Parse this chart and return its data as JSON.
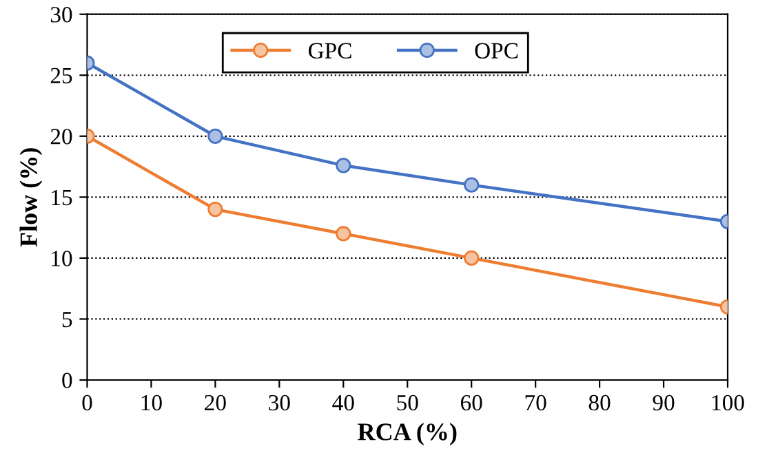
{
  "chart_data": {
    "type": "line",
    "xlabel": "RCA (%)",
    "ylabel": "Flow (%)",
    "x": [
      0,
      20,
      40,
      60,
      100
    ],
    "series": [
      {
        "name": "GPC",
        "color": "#ed7d31",
        "values": [
          20,
          14,
          12,
          10,
          6
        ]
      },
      {
        "name": "OPC",
        "color": "#4472c4",
        "values": [
          26,
          20,
          17.6,
          16,
          13
        ]
      }
    ],
    "xlim": [
      0,
      100
    ],
    "xticks": [
      0,
      10,
      20,
      30,
      40,
      50,
      60,
      70,
      80,
      90,
      100
    ],
    "ylim": [
      0,
      30
    ],
    "yticks": [
      0,
      5,
      10,
      15,
      20,
      25,
      30
    ],
    "grid": "y",
    "legend": "top",
    "marker": "circle",
    "line_style": "solid"
  }
}
